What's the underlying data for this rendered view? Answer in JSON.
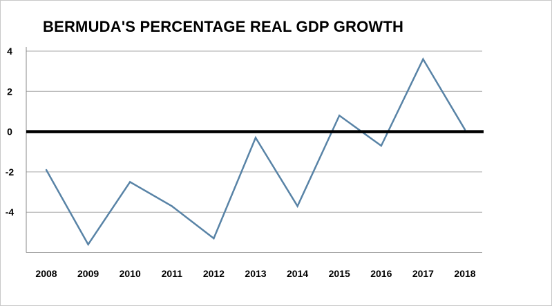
{
  "chart_data": {
    "type": "line",
    "title": "BERMUDA'S PERCENTAGE REAL GDP GROWTH",
    "xlabel": "",
    "ylabel": "",
    "categories": [
      "2008",
      "2009",
      "2010",
      "2011",
      "2012",
      "2013",
      "2014",
      "2015",
      "2016",
      "2017",
      "2018"
    ],
    "series": [
      {
        "values": [
          -1.9,
          -5.6,
          -2.5,
          -3.7,
          -5.3,
          -0.3,
          -3.7,
          0.8,
          -0.7,
          3.6,
          0.1
        ]
      }
    ],
    "ylim": [
      -6,
      4
    ],
    "yticks": [
      4,
      2,
      0,
      -2,
      -4
    ],
    "grid": true,
    "legend": "none",
    "colors": {
      "line": "#5883a6",
      "zero_line": "#000000",
      "grid": "#a6a6a6"
    }
  }
}
